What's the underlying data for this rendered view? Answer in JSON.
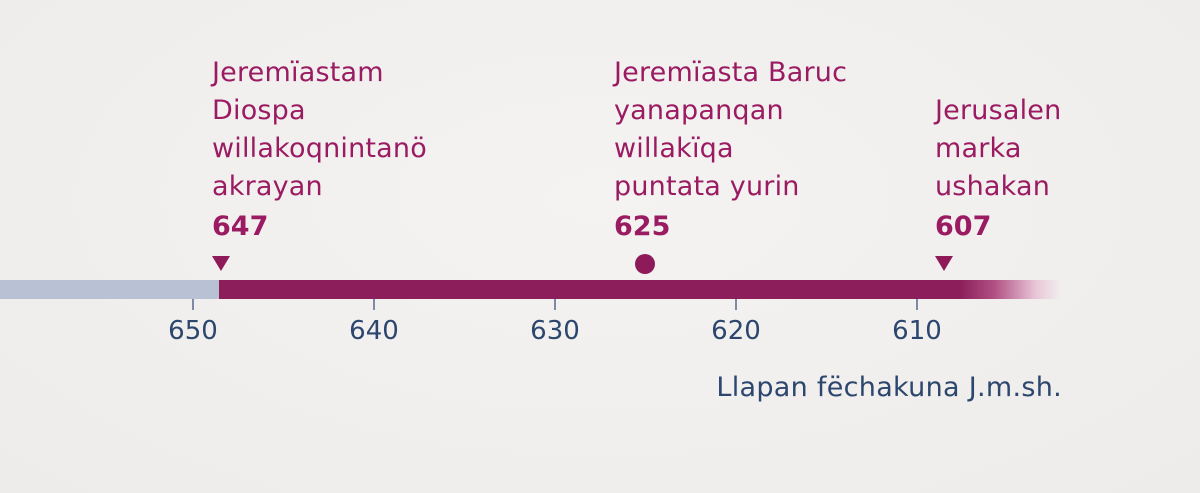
{
  "events": [
    {
      "label": "Jeremïastam\nDiospa\nwillakoqnintanö\nakrayan",
      "year": "647",
      "marker": "triangle"
    },
    {
      "label": "Jeremïasta Baruc\nyanapanqan\nwillakïqa\npuntata yurin",
      "year": "625",
      "marker": "dot"
    },
    {
      "label": "Jerusalen\nmarka\nushakan",
      "year": "607",
      "marker": "triangle"
    }
  ],
  "axis": {
    "ticks": [
      "650",
      "640",
      "630",
      "620",
      "610"
    ],
    "caption": "Llapan fëchakuna J.m.sh."
  },
  "colors": {
    "event_text": "#9b1b62",
    "bar_main": "#8c1f5b",
    "bar_past": "#b9c1d4",
    "axis_text": "#2c466e"
  }
}
